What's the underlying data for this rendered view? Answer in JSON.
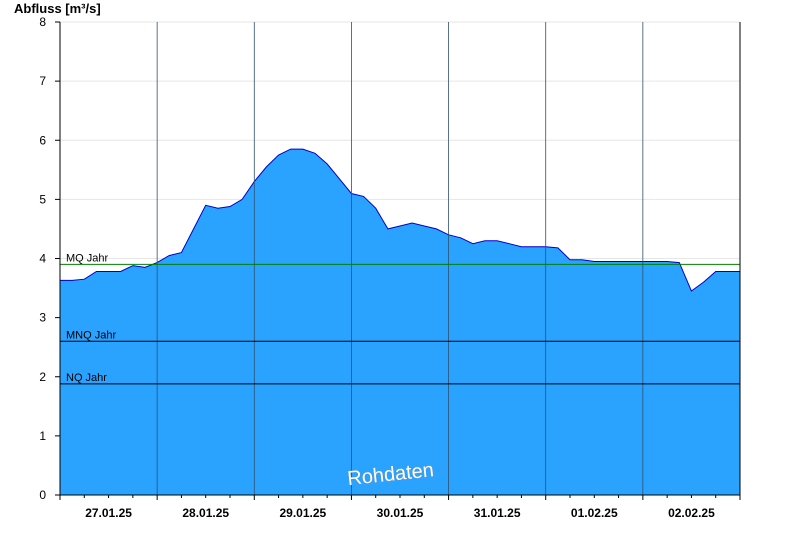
{
  "chart_data": {
    "type": "area",
    "ylabel": "Abfluss [m³/s]",
    "ylim": [
      0,
      8
    ],
    "yticks": [
      0,
      1,
      2,
      3,
      4,
      5,
      6,
      7,
      8
    ],
    "xlim": [
      "2025-01-27T00:00",
      "2025-02-03T00:00"
    ],
    "xtick_labels": [
      "27.01.25",
      "28.01.25",
      "29.01.25",
      "30.01.25",
      "31.01.25",
      "01.02.25",
      "02.02.25"
    ],
    "grid": true,
    "area_color": "#29a3ff",
    "line_color": "#0000cc",
    "reference_lines": [
      {
        "label": "MQ Jahr",
        "value": 3.9,
        "color": "#008000"
      },
      {
        "label": "MNQ Jahr",
        "value": 2.6,
        "color": "#000000"
      },
      {
        "label": "NQ Jahr",
        "value": 1.88,
        "color": "#000000"
      }
    ],
    "watermark": "Rohdaten",
    "series": [
      {
        "points": [
          [
            "2025-01-27T00:00",
            3.63
          ],
          [
            "2025-01-27T03:00",
            3.63
          ],
          [
            "2025-01-27T06:00",
            3.65
          ],
          [
            "2025-01-27T09:00",
            3.78
          ],
          [
            "2025-01-27T12:00",
            3.78
          ],
          [
            "2025-01-27T15:00",
            3.78
          ],
          [
            "2025-01-27T18:00",
            3.88
          ],
          [
            "2025-01-27T21:00",
            3.85
          ],
          [
            "2025-01-28T00:00",
            3.93
          ],
          [
            "2025-01-28T03:00",
            4.05
          ],
          [
            "2025-01-28T06:00",
            4.1
          ],
          [
            "2025-01-28T09:00",
            4.5
          ],
          [
            "2025-01-28T12:00",
            4.9
          ],
          [
            "2025-01-28T15:00",
            4.85
          ],
          [
            "2025-01-28T18:00",
            4.88
          ],
          [
            "2025-01-28T21:00",
            5.0
          ],
          [
            "2025-01-29T00:00",
            5.3
          ],
          [
            "2025-01-29T03:00",
            5.55
          ],
          [
            "2025-01-29T06:00",
            5.75
          ],
          [
            "2025-01-29T09:00",
            5.85
          ],
          [
            "2025-01-29T12:00",
            5.85
          ],
          [
            "2025-01-29T15:00",
            5.78
          ],
          [
            "2025-01-29T18:00",
            5.6
          ],
          [
            "2025-01-29T21:00",
            5.35
          ],
          [
            "2025-01-30T00:00",
            5.1
          ],
          [
            "2025-01-30T03:00",
            5.05
          ],
          [
            "2025-01-30T06:00",
            4.85
          ],
          [
            "2025-01-30T09:00",
            4.5
          ],
          [
            "2025-01-30T12:00",
            4.55
          ],
          [
            "2025-01-30T15:00",
            4.6
          ],
          [
            "2025-01-30T18:00",
            4.55
          ],
          [
            "2025-01-30T21:00",
            4.5
          ],
          [
            "2025-01-31T00:00",
            4.4
          ],
          [
            "2025-01-31T03:00",
            4.35
          ],
          [
            "2025-01-31T06:00",
            4.25
          ],
          [
            "2025-01-31T09:00",
            4.3
          ],
          [
            "2025-01-31T12:00",
            4.3
          ],
          [
            "2025-01-31T15:00",
            4.25
          ],
          [
            "2025-01-31T18:00",
            4.2
          ],
          [
            "2025-01-31T21:00",
            4.2
          ],
          [
            "2025-02-01T00:00",
            4.2
          ],
          [
            "2025-02-01T03:00",
            4.18
          ],
          [
            "2025-02-01T06:00",
            3.98
          ],
          [
            "2025-02-01T09:00",
            3.98
          ],
          [
            "2025-02-01T12:00",
            3.95
          ],
          [
            "2025-02-01T15:00",
            3.95
          ],
          [
            "2025-02-01T18:00",
            3.95
          ],
          [
            "2025-02-01T21:00",
            3.95
          ],
          [
            "2025-02-02T00:00",
            3.95
          ],
          [
            "2025-02-02T03:00",
            3.95
          ],
          [
            "2025-02-02T06:00",
            3.95
          ],
          [
            "2025-02-02T09:00",
            3.93
          ],
          [
            "2025-02-02T12:00",
            3.45
          ],
          [
            "2025-02-02T15:00",
            3.6
          ],
          [
            "2025-02-02T18:00",
            3.78
          ],
          [
            "2025-02-02T21:00",
            3.78
          ],
          [
            "2025-02-03T00:00",
            3.78
          ]
        ]
      }
    ]
  }
}
